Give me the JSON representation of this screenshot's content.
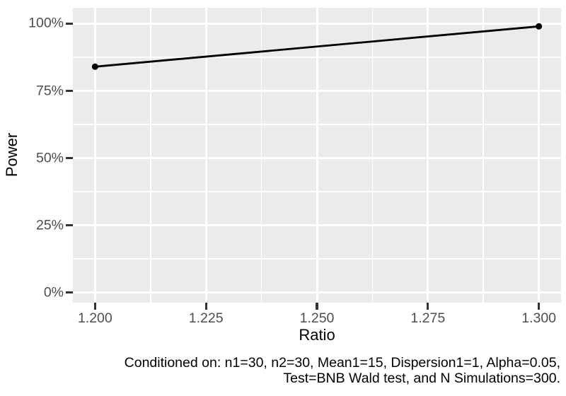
{
  "chart_data": {
    "type": "line",
    "x": [
      1.2,
      1.3
    ],
    "series": [
      {
        "name": "Power",
        "values": [
          0.84,
          0.99
        ]
      }
    ],
    "title": "",
    "xlabel": "Ratio",
    "ylabel": "Power",
    "x_ticks": {
      "values": [
        1.2,
        1.225,
        1.25,
        1.275,
        1.3
      ],
      "labels": [
        "1.200",
        "1.225",
        "1.250",
        "1.275",
        "1.300"
      ]
    },
    "y_ticks": {
      "values": [
        0,
        0.25,
        0.5,
        0.75,
        1.0
      ],
      "labels": [
        "0%",
        "25%",
        "50%",
        "75%",
        "100%"
      ]
    },
    "x_minor": [
      1.2125,
      1.2375,
      1.2625,
      1.2875
    ],
    "y_minor": [
      0.125,
      0.375,
      0.625,
      0.875
    ],
    "xlim": [
      1.195,
      1.305
    ],
    "ylim": [
      -0.0368,
      1.0592
    ],
    "grid": true,
    "legend": "none",
    "colors": {
      "panel_background": "#EBEBEB",
      "gridline_major": "#FFFFFF",
      "gridline_minor": "#FFFFFF",
      "axis_text": "#4D4D4D",
      "tick_mark": "#333333",
      "line": "#000000",
      "point": "#000000",
      "caption_text": "#000000"
    }
  },
  "caption": {
    "line1": "Conditioned on: n1=30, n2=30, Mean1=15, Dispersion1=1, Alpha=0.05,",
    "line2": "Test=BNB Wald test, and N Simulations=300."
  }
}
